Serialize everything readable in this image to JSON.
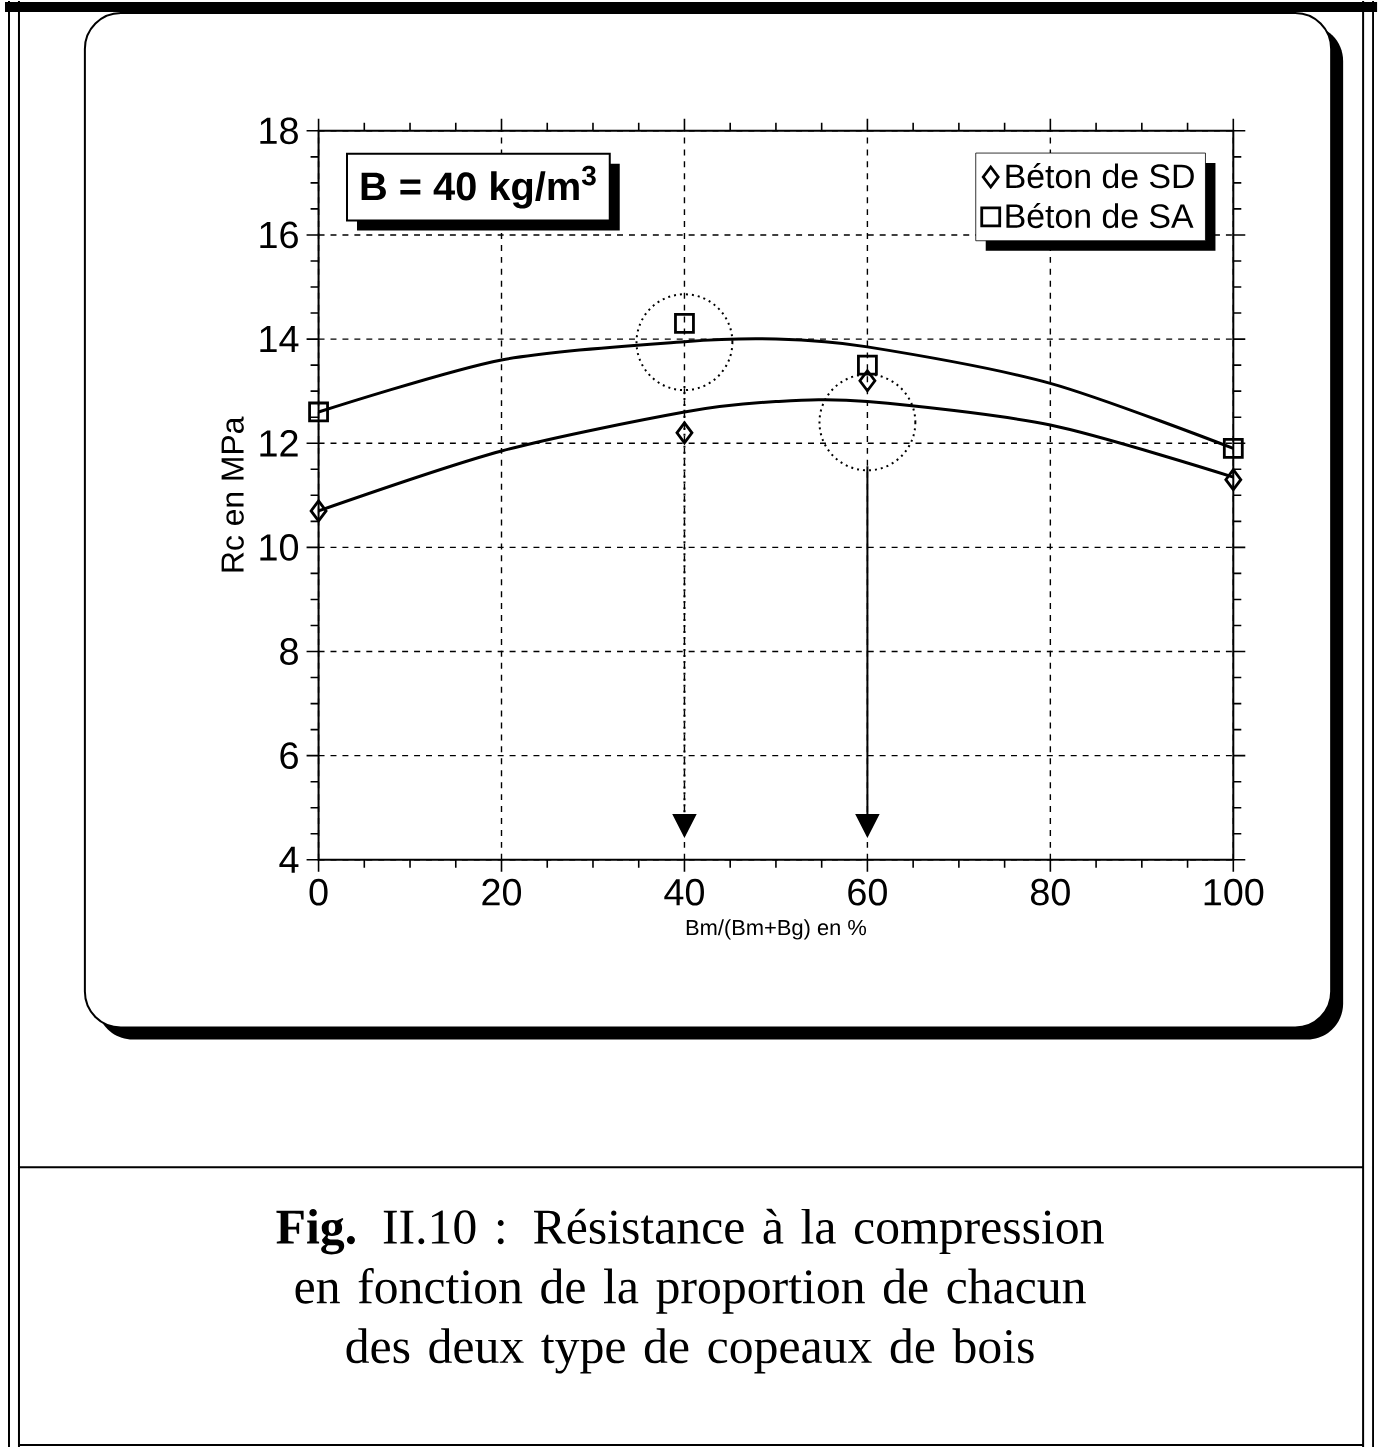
{
  "chart_data": {
    "type": "scatter",
    "xlabel": "Bm/(Bm+Bg) en %",
    "ylabel": "Rc en MPa",
    "xlim": [
      0,
      100
    ],
    "ylim": [
      4,
      18
    ],
    "xticks": [
      0,
      20,
      40,
      60,
      80,
      100
    ],
    "yticks": [
      4,
      6,
      8,
      10,
      12,
      14,
      16,
      18
    ],
    "grid": true,
    "legend": "top right",
    "series": [
      {
        "name": "Béton de SD",
        "marker": "diamond",
        "color": "#000000",
        "x": [
          0,
          40,
          60,
          100
        ],
        "values": [
          10.7,
          12.2,
          13.2,
          11.3
        ]
      },
      {
        "name": "Béton de SA",
        "marker": "square",
        "color": "#000000",
        "x": [
          0,
          40,
          60,
          100
        ],
        "values": [
          12.6,
          14.3,
          13.5,
          11.9
        ]
      },
      {
        "type": "line",
        "marker": "none",
        "color": "#000000",
        "x": [
          0,
          20,
          40,
          50,
          60,
          80,
          100
        ],
        "values": [
          10.7,
          11.85,
          12.6,
          12.8,
          12.8,
          12.35,
          11.35
        ]
      },
      {
        "type": "line",
        "marker": "none",
        "color": "#000000",
        "x": [
          0,
          20,
          40,
          50,
          60,
          80,
          100
        ],
        "values": [
          12.6,
          13.6,
          13.95,
          14.0,
          13.85,
          13.15,
          11.9
        ]
      }
    ],
    "ref_lines": [
      {
        "axis": "x",
        "value": 40,
        "line_style": "dotted"
      },
      {
        "axis": "x",
        "value": 60,
        "line_style": "solid"
      }
    ],
    "annotations": [
      "B = 40 kg/m$^{3}$",
      "**Fig.** II.10 : Résistance à la compression en fonction de la proportion de chacun des deux type de copeaux de bois"
    ]
  }
}
